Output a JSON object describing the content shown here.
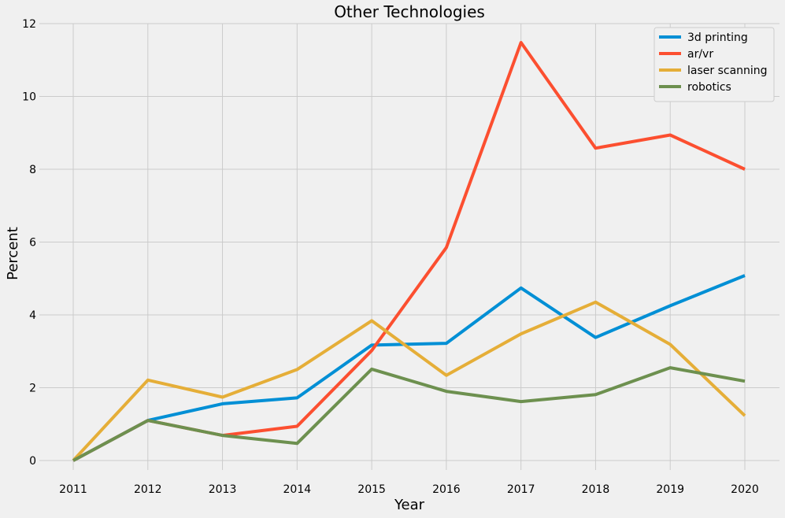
{
  "chart_data": {
    "type": "line",
    "title": "Other Technologies",
    "xlabel": "Year",
    "ylabel": "Percent",
    "x": [
      "2011",
      "2012",
      "2013",
      "2014",
      "2015",
      "2016",
      "2017",
      "2018",
      "2019",
      "2020"
    ],
    "xlim": [
      2011,
      2020
    ],
    "ylim": [
      0,
      12
    ],
    "yticks": [
      0,
      2,
      4,
      6,
      8,
      10,
      12
    ],
    "grid": true,
    "legend_position": "top-right",
    "series": [
      {
        "name": "3d printing",
        "color": "#008fd5",
        "values": [
          0,
          1.1,
          1.56,
          1.72,
          3.17,
          3.22,
          4.74,
          3.38,
          4.25,
          5.08
        ]
      },
      {
        "name": "ar/vr",
        "color": "#fc4f30",
        "values": [
          0,
          1.1,
          0.69,
          0.94,
          3.02,
          5.85,
          11.48,
          8.58,
          8.94,
          8.0
        ]
      },
      {
        "name": "laser scanning",
        "color": "#e5ae38",
        "values": [
          0,
          2.21,
          1.74,
          2.5,
          3.84,
          2.34,
          3.48,
          4.35,
          3.19,
          1.23
        ]
      },
      {
        "name": "robotics",
        "color": "#6d904f",
        "values": [
          0,
          1.1,
          0.69,
          0.47,
          2.51,
          1.9,
          1.62,
          1.81,
          2.55,
          2.18
        ]
      }
    ]
  }
}
